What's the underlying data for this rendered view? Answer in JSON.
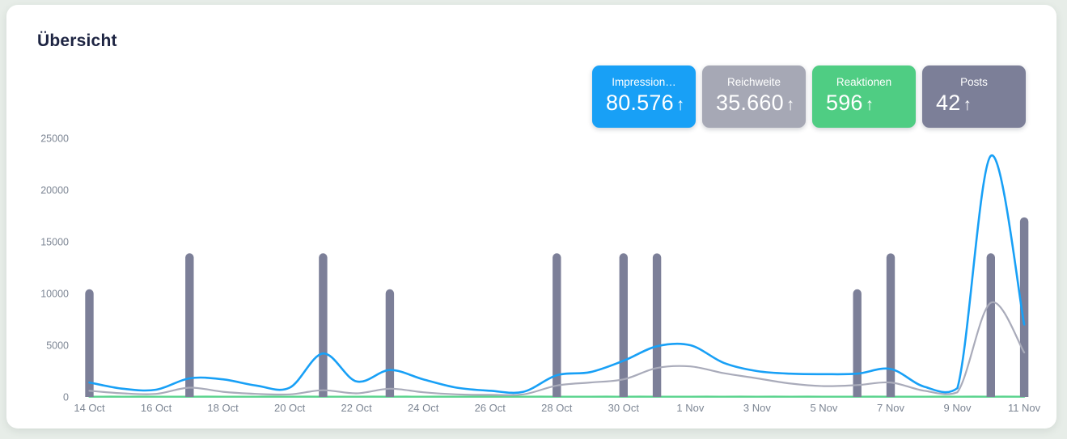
{
  "page": {
    "title": "Übersicht"
  },
  "stat_cards": [
    {
      "label": "Impression…",
      "value": "80.576",
      "trend": "↑",
      "color": "#18a0f6"
    },
    {
      "label": "Reichweite",
      "value": "35.660",
      "trend": "↑",
      "color": "#a6a8b5"
    },
    {
      "label": "Reaktionen",
      "value": "596",
      "trend": "↑",
      "color": "#4fcd83"
    },
    {
      "label": "Posts",
      "value": "42",
      "trend": "↑",
      "color": "#7c7f98"
    }
  ],
  "chart_data": {
    "type": "line+bar",
    "title": "Übersicht",
    "x": [
      "14 Oct",
      "15 Oct",
      "16 Oct",
      "17 Oct",
      "18 Oct",
      "19 Oct",
      "20 Oct",
      "21 Oct",
      "22 Oct",
      "23 Oct",
      "24 Oct",
      "25 Oct",
      "26 Oct",
      "27 Oct",
      "28 Oct",
      "29 Oct",
      "30 Oct",
      "31 Oct",
      "1 Nov",
      "2 Nov",
      "3 Nov",
      "4 Nov",
      "5 Nov",
      "6 Nov",
      "7 Nov",
      "8 Nov",
      "9 Nov",
      "10 Nov",
      "11 Nov"
    ],
    "x_tick_labels": [
      "14 Oct",
      "16 Oct",
      "18 Oct",
      "20 Oct",
      "22 Oct",
      "24 Oct",
      "26 Oct",
      "28 Oct",
      "30 Oct",
      "1 Nov",
      "3 Nov",
      "5 Nov",
      "7 Nov",
      "9 Nov",
      "11 Nov"
    ],
    "yticks": [
      0,
      5000,
      10000,
      15000,
      20000,
      25000
    ],
    "ylim": [
      0,
      25000
    ],
    "grid": false,
    "legend_position": "none",
    "bar_value_scale": 3470,
    "series": [
      {
        "name": "Impressionen",
        "slug": "impressions-line",
        "type": "line",
        "color": "#18a0f6",
        "values": [
          1400,
          800,
          700,
          1800,
          1700,
          1100,
          900,
          4200,
          1500,
          2600,
          1700,
          900,
          600,
          500,
          2100,
          2400,
          3500,
          4900,
          5000,
          3300,
          2500,
          2250,
          2200,
          2250,
          2700,
          1000,
          850,
          23300,
          7000
        ]
      },
      {
        "name": "Reichweite",
        "slug": "reach-line",
        "type": "line",
        "color": "#a9abba",
        "values": [
          600,
          350,
          300,
          900,
          500,
          300,
          250,
          650,
          350,
          800,
          450,
          250,
          200,
          250,
          1100,
          1400,
          1700,
          2800,
          2950,
          2300,
          1800,
          1300,
          1050,
          1150,
          1400,
          600,
          450,
          9100,
          4300
        ]
      },
      {
        "name": "Reaktionen",
        "slug": "reactions-line",
        "type": "line",
        "color": "#5ad48d",
        "values": [
          20,
          20,
          20,
          20,
          20,
          20,
          20,
          20,
          20,
          20,
          20,
          20,
          20,
          20,
          20,
          20,
          20,
          20,
          20,
          20,
          20,
          20,
          20,
          20,
          20,
          20,
          20,
          20,
          20
        ]
      },
      {
        "name": "Posts",
        "slug": "posts-bars",
        "type": "bar",
        "color": "#7c7f98",
        "unit": "posts",
        "values": [
          3,
          null,
          null,
          4,
          null,
          null,
          null,
          4,
          null,
          3,
          null,
          null,
          null,
          null,
          4,
          null,
          4,
          4,
          null,
          null,
          null,
          null,
          null,
          3,
          4,
          null,
          null,
          4,
          5
        ]
      }
    ]
  }
}
